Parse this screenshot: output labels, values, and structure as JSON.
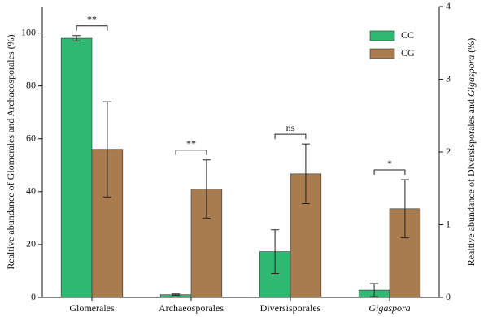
{
  "chart_data": {
    "type": "bar",
    "categories": [
      "Glomerales",
      "Archaeosporales",
      "Diversisporales",
      "Gigaspora"
    ],
    "italic": [
      false,
      false,
      false,
      true
    ],
    "axes": [
      "y",
      "y",
      "y2",
      "y2"
    ],
    "series": [
      {
        "name": "CC",
        "color": "#2fb872",
        "values": [
          98,
          1,
          0.63,
          0.1
        ],
        "errors": [
          1,
          0.3,
          0.3,
          0.09
        ]
      },
      {
        "name": "CG",
        "color": "#a97c50",
        "values": [
          56,
          41,
          1.7,
          1.22
        ],
        "errors": [
          18,
          11,
          0.41,
          0.4
        ]
      }
    ],
    "significance": [
      "**",
      "**",
      "ns",
      "*"
    ],
    "ylabel": "Realtive abundance of Glomerales and Archaeosporales (%)",
    "y2label": [
      {
        "text": "Realtive abundance of Diversisporales and ",
        "italic": false
      },
      {
        "text": "Gigaspora",
        "italic": true
      },
      {
        "text": " (%)",
        "italic": false
      }
    ],
    "ylim": [
      0,
      110
    ],
    "yticks": [
      0,
      20,
      40,
      60,
      80,
      100
    ],
    "y2lim": [
      0,
      4
    ],
    "y2ticks": [
      0,
      1,
      2,
      3,
      4
    ],
    "legend": "upper right"
  }
}
